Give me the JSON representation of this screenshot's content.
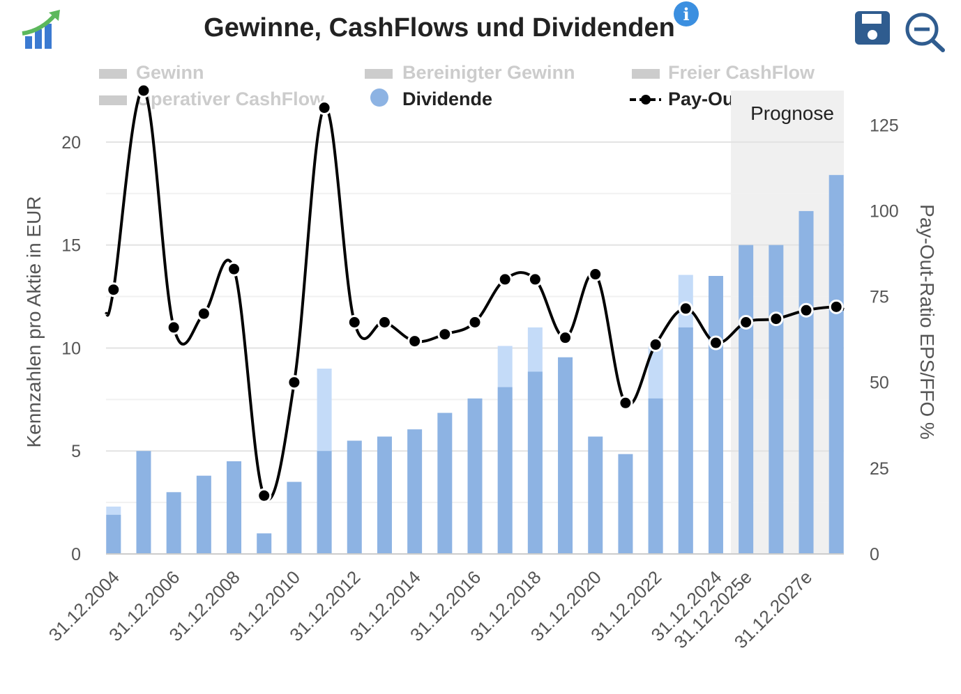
{
  "colors": {
    "dividend": "#8db3e3",
    "gewinn": "#c4dbf8",
    "disabled": "#cccccc",
    "payout": "#000000",
    "forecast_band": "#f0f0f0",
    "icon_blue": "#2f5c8f"
  },
  "icons": {
    "logo": "bar-chart-trend-icon",
    "info": "info-icon",
    "save": "save-icon",
    "zoom_out": "zoom-out-icon"
  },
  "chart_data": {
    "type": "bar",
    "title": "Gewinne, CashFlows und Dividenden",
    "ylabel": "Kennzahlen pro Aktie in EUR",
    "y2label": "Pay-Out-Ratio EPS/FFO %",
    "ylim": [
      0,
      22.5
    ],
    "y2lim": [
      0,
      135
    ],
    "yticks": [
      0,
      5,
      10,
      15,
      20
    ],
    "y2ticks": [
      0,
      25,
      50,
      75,
      100,
      125
    ],
    "grid": true,
    "forecast_label": "Prognose",
    "forecast_start_index": 21,
    "categories": [
      "2004",
      "2005",
      "2006",
      "2007",
      "2008",
      "2009",
      "2010",
      "2011",
      "2012",
      "2013",
      "2014",
      "2015",
      "2016",
      "2017",
      "2018",
      "2019",
      "2020",
      "2021",
      "2022",
      "2023",
      "2024",
      "2025e",
      "2026e",
      "2027e",
      "2028e"
    ],
    "category_labels": [
      "31.12.2004",
      "",
      "31.12.2006",
      "",
      "31.12.2008",
      "",
      "31.12.2010",
      "",
      "31.12.2012",
      "",
      "31.12.2014",
      "",
      "31.12.2016",
      "",
      "31.12.2018",
      "",
      "31.12.2020",
      "",
      "31.12.2022",
      "",
      "31.12.2024",
      "31.12.2025e",
      "",
      "31.12.2027e",
      ""
    ],
    "legend": [
      {
        "name": "Gewinn",
        "active": false,
        "symbol": "bar"
      },
      {
        "name": "Bereinigter Gewinn",
        "active": false,
        "symbol": "bar"
      },
      {
        "name": "Freier CashFlow",
        "active": false,
        "symbol": "bar"
      },
      {
        "name": "Operativer CashFlow",
        "active": false,
        "symbol": "bar"
      },
      {
        "name": "Dividende",
        "active": true,
        "symbol": "circle"
      },
      {
        "name": "Pay-Out",
        "active": true,
        "symbol": "line"
      }
    ],
    "series": [
      {
        "name": "Dividende",
        "values": [
          1.9,
          5.0,
          3.0,
          3.8,
          4.5,
          1.0,
          3.5,
          5.0,
          5.5,
          5.7,
          6.05,
          6.85,
          7.55,
          8.1,
          8.85,
          9.55,
          5.7,
          4.85,
          7.55,
          11.0,
          13.5,
          15.0,
          15.0,
          16.65,
          18.4
        ]
      },
      {
        "name": "Gewinn",
        "values": [
          2.3,
          null,
          null,
          null,
          null,
          null,
          null,
          9.0,
          null,
          null,
          null,
          null,
          null,
          10.1,
          11.0,
          null,
          null,
          null,
          10.1,
          13.55,
          null,
          null,
          null,
          null,
          null
        ]
      },
      {
        "name": "Pay-Out",
        "axis": "right",
        "values": [
          77,
          135,
          66,
          70,
          83,
          17,
          50,
          130,
          67.5,
          67.5,
          62,
          64,
          67.5,
          80,
          80,
          63,
          81.5,
          44,
          61,
          71.5,
          61.5,
          67.5,
          68.5,
          71,
          72
        ]
      }
    ]
  }
}
